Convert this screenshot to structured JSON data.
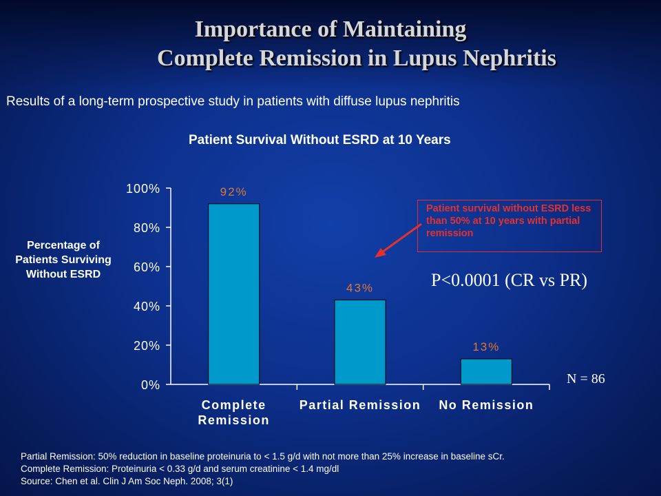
{
  "slide": {
    "title_line1": "Importance of Maintaining",
    "title_line2": "Complete Remission in Lupus Nephritis",
    "subtitle": "Results of a long-term prospective study in patients with diffuse lupus nephritis",
    "callout": "Patient survival without ESRD less than 50% at 10 years with partial remission",
    "p_value": "P<0.0001 (CR vs PR)",
    "n_value": "N = 86",
    "footnotes": [
      "Partial Remission: 50% reduction in baseline proteinuria to < 1.5 g/d with not more than 25% increase in baseline sCr.",
      "Complete Remission: Proteinuria < 0.33 g/d and serum creatinine < 1.4 mg/dl",
      "Source: Chen et al. Clin J Am Soc Neph. 2008; 3(1)"
    ]
  },
  "colors": {
    "bar": "#0099cc",
    "bar_stroke": "#000000",
    "data_label": "#e07830",
    "callout": "#e8302a",
    "axis": "#ffffff"
  },
  "chart_data": {
    "type": "bar",
    "title": "Patient Survival Without ESRD at 10 Years",
    "ylabel": "Percentage of Patients Surviving Without ESRD",
    "xlabel": "",
    "categories": [
      [
        "Complete",
        "Remission"
      ],
      [
        "Partial Remission"
      ],
      [
        "No Remission"
      ]
    ],
    "values": [
      92,
      43,
      13
    ],
    "data_labels": [
      "92%",
      "43%",
      "13%"
    ],
    "ylim": [
      0,
      100
    ],
    "yticks": [
      0,
      20,
      40,
      60,
      80,
      100
    ],
    "ytick_labels": [
      "0%",
      "20%",
      "40%",
      "60%",
      "80%",
      "100%"
    ],
    "grid": false,
    "legend": "none"
  }
}
